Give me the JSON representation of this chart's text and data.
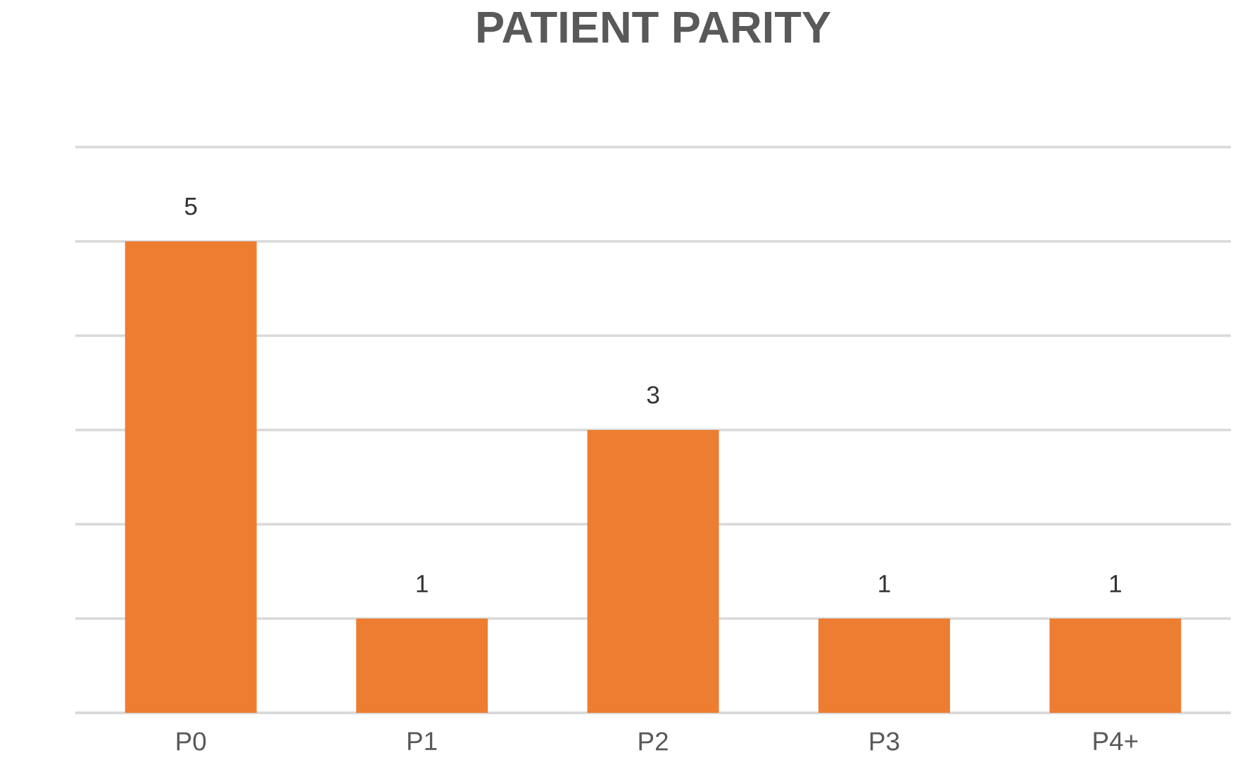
{
  "chart_data": {
    "type": "bar",
    "title": "PATIENT PARITY",
    "categories": [
      "P0",
      "P1",
      "P2",
      "P3",
      "P4+"
    ],
    "values": [
      5,
      1,
      3,
      1,
      1
    ],
    "color": "#ed7d31",
    "ylim": [
      0,
      6
    ],
    "yticks": [
      0,
      1,
      2,
      3,
      4,
      5,
      6
    ],
    "grid": "y",
    "tick_labels": "x",
    "data_labels": true
  }
}
